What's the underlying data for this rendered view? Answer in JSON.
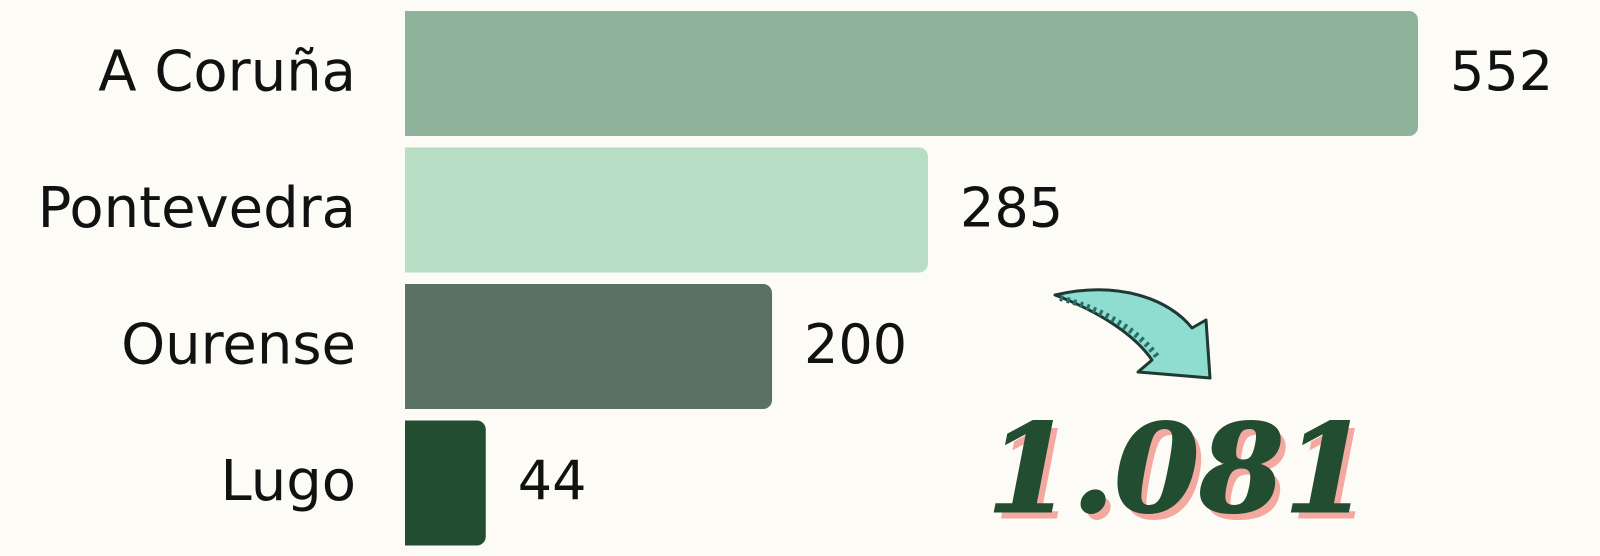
{
  "chart_data": {
    "type": "bar",
    "orientation": "horizontal",
    "categories": [
      "A Coruña",
      "Pontevedra",
      "Ourense",
      "Lugo"
    ],
    "values": [
      552,
      285,
      200,
      44
    ],
    "colors": [
      "#8fb29a",
      "#b7dec5",
      "#5b7262",
      "#234d30"
    ],
    "annotation": "1.081"
  }
}
